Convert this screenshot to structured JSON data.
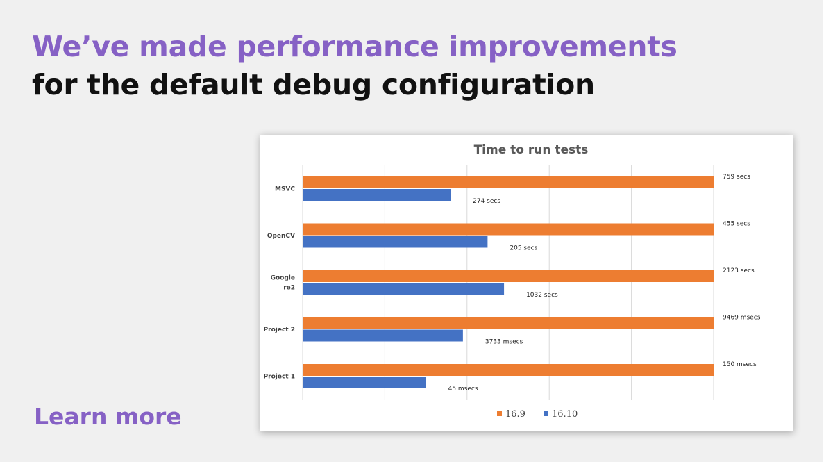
{
  "headline": {
    "accent": "We’ve made performance improvements",
    "rest": " for the default debug configuration"
  },
  "learn_more": "Learn more",
  "colors": {
    "accent": "#8661c5",
    "series_16_9": "#ed7d31",
    "series_16_10": "#4472c4"
  },
  "chart_data": {
    "type": "bar",
    "orientation": "horizontal",
    "title": "Time to run tests",
    "categories": [
      "MSVC",
      "OpenCV",
      "Google re2",
      "Project 2",
      "Project 1"
    ],
    "category_lines": [
      [
        "MSVC"
      ],
      [
        "OpenCV"
      ],
      [
        "Google",
        "re2"
      ],
      [
        "Project 2"
      ],
      [
        "Project 1"
      ]
    ],
    "series": [
      {
        "name": "16.9",
        "color": "#ed7d31",
        "values": [
          1.0,
          1.0,
          1.0,
          1.0,
          1.0
        ],
        "labels": [
          "759 secs",
          "455 secs",
          "2123 secs",
          "9469 msecs",
          "150 msecs"
        ]
      },
      {
        "name": "16.10",
        "color": "#4472c4",
        "values": [
          0.36,
          0.45,
          0.49,
          0.39,
          0.3
        ],
        "labels": [
          "274 secs",
          "205 secs",
          "1032 secs",
          "3733 msecs",
          "45 msecs"
        ]
      }
    ],
    "xlim": [
      0,
      1
    ],
    "grid": true,
    "legend_position": "bottom"
  }
}
